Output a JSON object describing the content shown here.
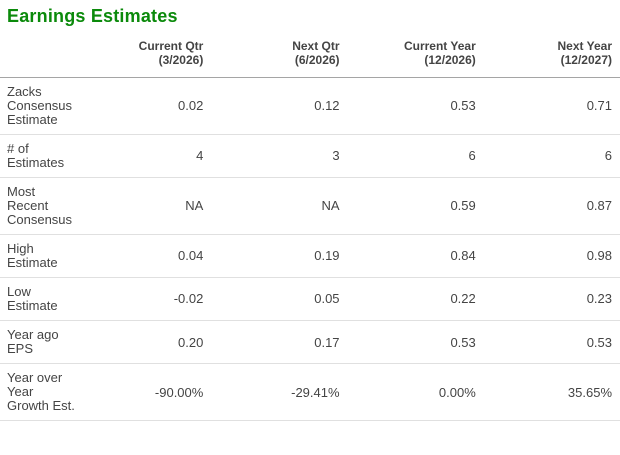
{
  "title": "Earnings Estimates",
  "colors": {
    "title_green": "#0b8a0b",
    "text": "#444444",
    "header_divider": "#a5a5a5",
    "row_divider": "#e0e0e0",
    "background": "#ffffff"
  },
  "table": {
    "columns": [
      {
        "label": "Current Qtr",
        "period": "(3/2026)"
      },
      {
        "label": "Next Qtr",
        "period": "(6/2026)"
      },
      {
        "label": "Current Year",
        "period": "(12/2026)"
      },
      {
        "label": "Next Year",
        "period": "(12/2027)"
      }
    ],
    "rows": [
      {
        "label": "Zacks Consensus Estimate",
        "values": [
          "0.02",
          "0.12",
          "0.53",
          "0.71"
        ]
      },
      {
        "label": "# of Estimates",
        "values": [
          "4",
          "3",
          "6",
          "6"
        ]
      },
      {
        "label": "Most Recent Consensus",
        "values": [
          "NA",
          "NA",
          "0.59",
          "0.87"
        ]
      },
      {
        "label": "High Estimate",
        "values": [
          "0.04",
          "0.19",
          "0.84",
          "0.98"
        ]
      },
      {
        "label": "Low Estimate",
        "values": [
          "-0.02",
          "0.05",
          "0.22",
          "0.23"
        ]
      },
      {
        "label": "Year ago EPS",
        "values": [
          "0.20",
          "0.17",
          "0.53",
          "0.53"
        ]
      },
      {
        "label": "Year over Year Growth Est.",
        "values": [
          "-90.00%",
          "-29.41%",
          "0.00%",
          "35.65%"
        ]
      }
    ]
  }
}
